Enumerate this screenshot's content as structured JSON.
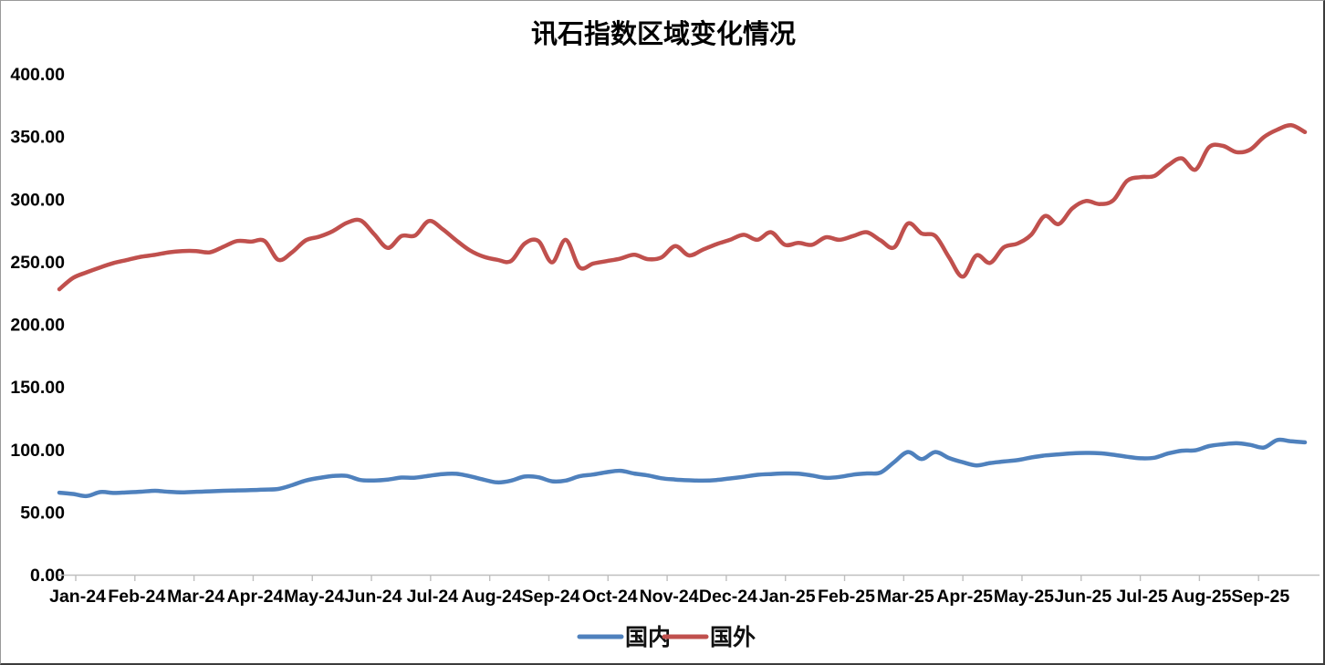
{
  "chart_data": {
    "type": "line",
    "title": "讯石指数区域变化情况",
    "x_labels": [
      "Jan-24",
      "Feb-24",
      "Mar-24",
      "Apr-24",
      "May-24",
      "Jun-24",
      "Jul-24",
      "Aug-24",
      "Sep-24",
      "Oct-24",
      "Nov-24",
      "Dec-24",
      "Jan-25",
      "Feb-25",
      "Mar-25",
      "Apr-25",
      "May-25",
      "Jun-25",
      "Jul-25",
      "Aug-25",
      "Sep-25"
    ],
    "y_tick_labels": [
      "0.00",
      "50.00",
      "100.00",
      "150.00",
      "200.00",
      "250.00",
      "300.00",
      "350.00",
      "400.00"
    ],
    "ylim": [
      0,
      400
    ],
    "grid": false,
    "smooth": true,
    "legend_position": "bottom",
    "axis_color": "#BFBFBF",
    "text_color": "#000000",
    "series": [
      {
        "name": "国内",
        "color": "#4F81BD",
        "values": [
          65.5,
          64.5,
          62.8,
          66,
          65.3,
          65.8,
          66.3,
          67,
          66.2,
          65.8,
          66.2,
          66.6,
          67,
          67.3,
          67.6,
          68,
          68.5,
          71.5,
          75.2,
          77.3,
          78.8,
          78.9,
          75.6,
          75.3,
          76,
          77.6,
          77.5,
          79,
          80.4,
          80.6,
          78.6,
          75.9,
          73.7,
          75.1,
          78.4,
          77.8,
          74.6,
          75.2,
          78.6,
          80,
          81.9,
          83,
          80.8,
          79.3,
          77,
          76,
          75.4,
          75.1,
          75.6,
          76.9,
          78.2,
          79.8,
          80.4,
          80.9,
          80.7,
          79.2,
          77.4,
          78.1,
          79.9,
          80.9,
          81.6,
          90,
          98,
          92.3,
          98,
          93.2,
          89.8,
          87.3,
          89.2,
          90.4,
          91.5,
          93.6,
          95.2,
          96.1,
          96.9,
          97.3,
          97,
          95.8,
          94.2,
          93,
          93.4,
          96.8,
          99,
          99.4,
          102.7,
          104.2,
          105,
          103.7,
          101.6,
          107.6,
          106.5,
          105.7
        ]
      },
      {
        "name": "国外",
        "color": "#C0504D",
        "values": [
          228,
          237,
          241.5,
          245.5,
          249,
          251.5,
          254,
          255.5,
          257.5,
          258.5,
          258.5,
          257.5,
          262,
          266.5,
          266,
          266.5,
          251.5,
          257.5,
          267,
          270,
          274.5,
          281,
          283,
          272,
          261,
          270.5,
          271,
          282.5,
          276,
          267,
          259,
          254,
          251.5,
          250.5,
          264.5,
          266.5,
          249.5,
          267.5,
          245.5,
          248.5,
          250.5,
          252.5,
          255.5,
          252,
          253.5,
          262.5,
          255,
          259.5,
          264,
          267.5,
          271.5,
          267.5,
          273.5,
          263.5,
          265,
          263.5,
          269.5,
          267.5,
          270.5,
          273.5,
          267,
          261.5,
          280.5,
          272.5,
          270.5,
          253.5,
          238,
          255,
          249,
          261.5,
          264.5,
          271.5,
          286.5,
          280,
          292.5,
          298.5,
          296,
          299,
          314.5,
          317.5,
          318.5,
          327,
          332.5,
          323.5,
          341.5,
          342.5,
          337.5,
          339.5,
          349.5,
          355.5,
          359,
          353.5
        ]
      }
    ]
  }
}
